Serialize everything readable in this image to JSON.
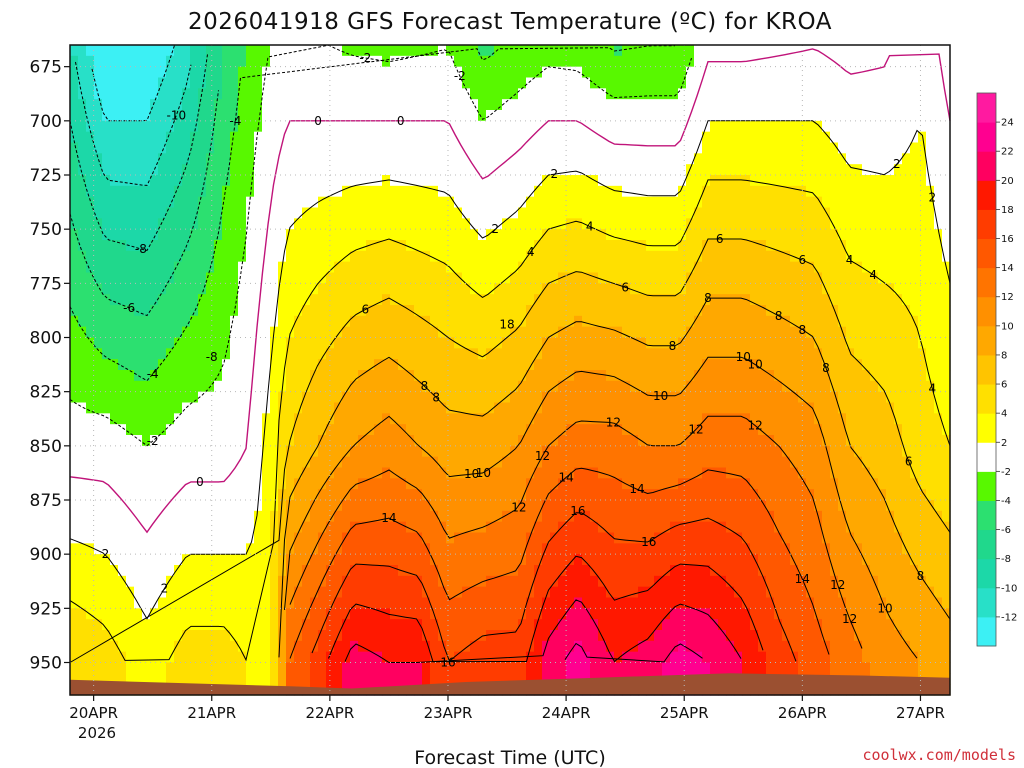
{
  "chart_data": {
    "type": "heatmap",
    "title": "2026041918 GFS Forecast Temperature (ºC) for KROA",
    "xlabel": "Forecast Time (UTC)",
    "ylabel": "",
    "x_ticks": [
      "20APR",
      "21APR",
      "22APR",
      "23APR",
      "24APR",
      "25APR",
      "26APR",
      "27APR"
    ],
    "x_tick_sublabel": "2026",
    "y_ticks": [
      675,
      700,
      725,
      750,
      775,
      800,
      825,
      850,
      875,
      900,
      925,
      950
    ],
    "y_range": [
      665,
      965
    ],
    "x_range_days": [
      19.8,
      27.25
    ],
    "x_tick_days": [
      20,
      21,
      22,
      23,
      24,
      25,
      26,
      27
    ],
    "colorbar": {
      "levels": [
        -14,
        -12,
        -10,
        -8,
        -6,
        -4,
        -2,
        2,
        4,
        6,
        8,
        10,
        12,
        14,
        16,
        18,
        20,
        22,
        24,
        26
      ],
      "labels": [
        "-12",
        "-10",
        "-8",
        "-6",
        "-4",
        "-2",
        "2",
        "4",
        "6",
        "8",
        "10",
        "12",
        "14",
        "16",
        "18",
        "20",
        "22",
        "24"
      ],
      "colors": [
        "#3cf0f4",
        "#28e0c8",
        "#1cd8a8",
        "#20d88c",
        "#2ce070",
        "#58f800",
        "#ffffff",
        "#ffff00",
        "#ffe000",
        "#ffc400",
        "#ffa800",
        "#ff9000",
        "#ff7400",
        "#ff5800",
        "#ff3c00",
        "#ff1800",
        "#ff0060",
        "#ff0090",
        "#ff1aa0"
      ]
    },
    "profile_days": [
      19.8,
      20.1,
      20.45,
      20.8,
      21.1,
      21.3,
      21.5,
      21.65,
      21.9,
      22.2,
      22.5,
      22.75,
      23.0,
      23.3,
      23.6,
      23.85,
      24.1,
      24.4,
      24.7,
      24.95,
      25.2,
      25.5,
      25.8,
      26.1,
      26.4,
      26.7,
      27.0,
      27.25
    ],
    "temperature_profiles": {
      "700": [
        -8,
        -12,
        -12,
        -9,
        -5,
        -3,
        -1,
        0,
        0,
        0,
        0,
        0,
        0,
        -2,
        -1,
        0,
        0,
        -1,
        -1,
        -1,
        2,
        2,
        2,
        2,
        1,
        1,
        2,
        0
      ],
      "850": [
        -1,
        -1,
        -2,
        -1,
        -1,
        0,
        3,
        6,
        8,
        10,
        11,
        10,
        9,
        9,
        10,
        12,
        13,
        13,
        12,
        12,
        13,
        13,
        12,
        11,
        8,
        7,
        5,
        4
      ],
      "950": [
        6,
        5,
        3,
        5,
        5,
        4,
        3,
        14,
        17,
        21,
        20,
        20,
        16,
        17,
        17,
        21,
        23,
        20,
        21,
        23,
        22,
        20,
        17,
        15,
        13,
        11,
        10,
        9
      ]
    },
    "contour_labels": [
      "2",
      "-2",
      "-8",
      "-10",
      "-8",
      "-6",
      "-4",
      "-4",
      "0",
      "2",
      "0",
      "-2",
      "0",
      "-2",
      "2",
      "4",
      "2",
      "4",
      "6",
      "8",
      "6",
      "10",
      "6",
      "4",
      "2",
      "4",
      "6",
      "8",
      "10",
      "12",
      "14",
      "12",
      "10",
      "8",
      "12",
      "14",
      "12",
      "14",
      "16",
      "18",
      "16",
      "14",
      "12",
      "10",
      "8",
      "12",
      "10",
      "8",
      "6",
      "4",
      "2",
      "8",
      "10",
      "12",
      "16",
      "8",
      "8"
    ],
    "ground": "brown terrain along bottom near 960 hPa"
  },
  "footer": {
    "credit": "coolwx.com/models"
  }
}
